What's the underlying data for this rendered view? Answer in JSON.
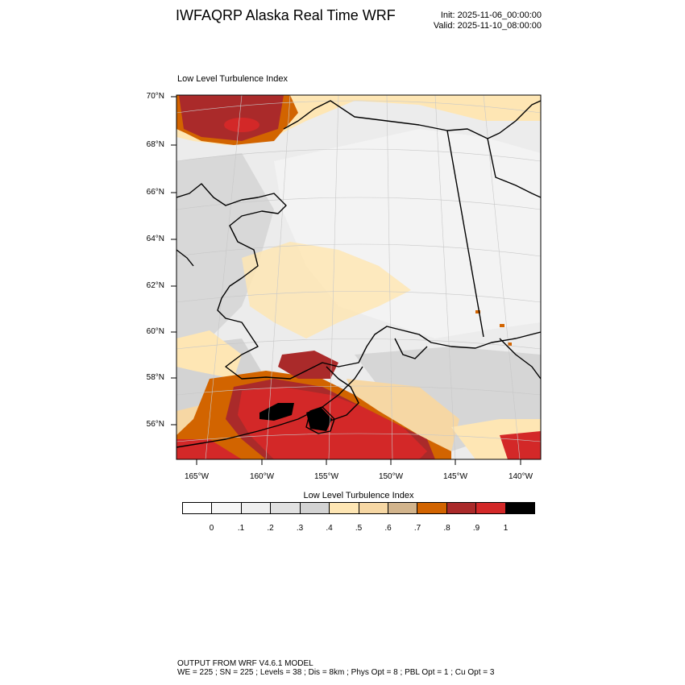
{
  "title": "IWFAQRP Alaska Real Time WRF",
  "init_label": "Init: 2025-11-06_00:00:00",
  "valid_label": "Valid: 2025-11-10_08:00:00",
  "map_title": "Low Level Turbulence Index",
  "lat_ticks": [
    "70°N",
    "68°N",
    "66°N",
    "64°N",
    "62°N",
    "60°N",
    "58°N",
    "56°N"
  ],
  "lon_ticks": [
    "165°W",
    "160°W",
    "155°W",
    "150°W",
    "145°W",
    "140°W"
  ],
  "colorbar": {
    "title": "Low Level Turbulence Index",
    "labels": [
      "0",
      ".1",
      ".2",
      ".3",
      ".4",
      ".5",
      ".6",
      ".7",
      ".8",
      ".9",
      "1"
    ],
    "colors": [
      "#ffffff",
      "#f7f7f7",
      "#efefef",
      "#e1e1e1",
      "#d3d3d3",
      "#fee6b4",
      "#f6d7a4",
      "#d2b48c",
      "#d26400",
      "#aa2a2a",
      "#d32828",
      "#000000"
    ]
  },
  "footer_line1": "OUTPUT FROM WRF V4.6.1 MODEL",
  "footer_line2": "WE = 225 ; SN = 225 ; Levels = 38 ; Dis = 8km ; Phys Opt = 8 ; PBL Opt = 1 ; Cu Opt = 3"
}
